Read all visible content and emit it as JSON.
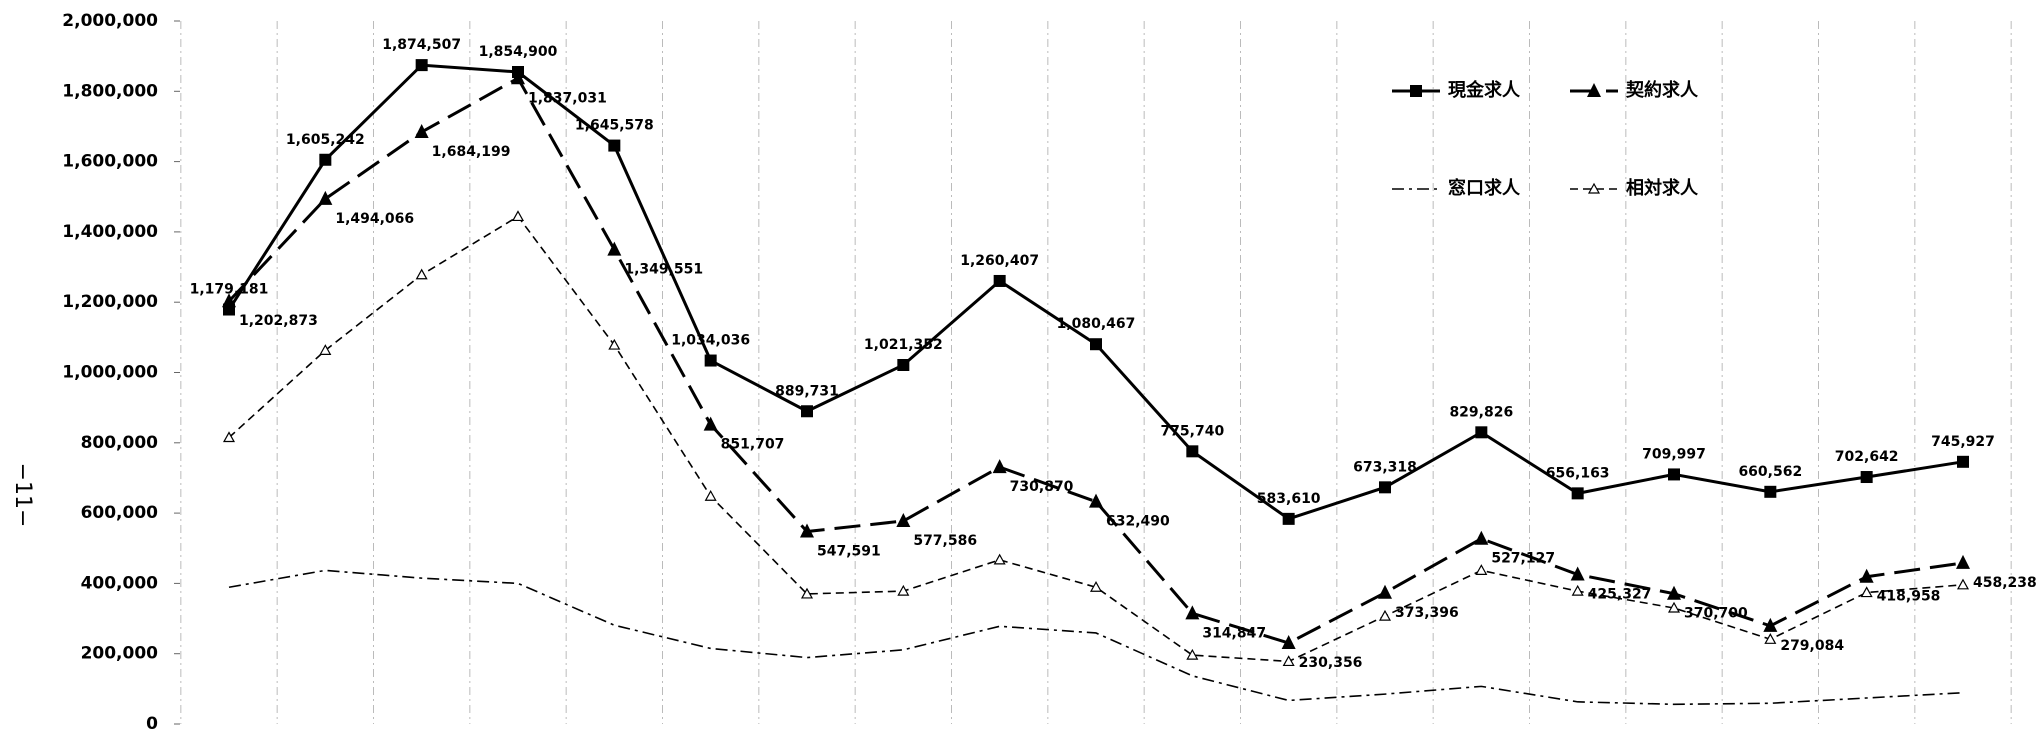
{
  "page_number": "−11−",
  "chart_data": {
    "type": "line",
    "categories": [
      null,
      null,
      null,
      null,
      null,
      null,
      null,
      null,
      null,
      null,
      null,
      null,
      null,
      null,
      null,
      null,
      null,
      null,
      null
    ],
    "ylim": [
      0,
      2000000
    ],
    "yticks": [
      0,
      {
        "value": 200000,
        "label": "200,000"
      },
      {
        "value": 400000,
        "label": "400,000"
      },
      {
        "value": 600000,
        "label": "600,000"
      },
      {
        "value": 800000,
        "label": "800,000"
      },
      {
        "value": 1000000,
        "label": "1,000,000"
      },
      {
        "value": 1200000,
        "label": "1,200,000"
      },
      {
        "value": 1400000,
        "label": "1,400,000"
      },
      {
        "value": 1600000,
        "label": "1,600,000"
      },
      {
        "value": 1800000,
        "label": "1,800,000"
      },
      {
        "value": 2000000,
        "label": "2,000,000"
      }
    ],
    "series": [
      {
        "name": "現金求人",
        "color": "#000000",
        "line_style": "solid",
        "marker": "square",
        "values": [
          1179181,
          1605242,
          1874507,
          1854900,
          1645578,
          1034036,
          889731,
          1021352,
          1260407,
          1080467,
          775740,
          583610,
          673318,
          829826,
          656163,
          709997,
          660562,
          702642,
          745927
        ],
        "value_labels": [
          "1,179,181",
          "1,605,242",
          "1,874,507",
          "1,854,900",
          "1,645,578",
          "1,034,036",
          "889,731",
          "1,021,352",
          "1,260,407",
          "1,080,467",
          "775,740",
          "583,610",
          "673,318",
          "829,826",
          "656,163",
          "709,997",
          "660,562",
          "702,642",
          "745,927"
        ]
      },
      {
        "name": "契約求人",
        "color": "#000000",
        "line_style": "long-dash",
        "marker": "triangle",
        "values": [
          1202873,
          1494066,
          1684199,
          1837031,
          1349551,
          851707,
          547591,
          577586,
          730870,
          632490,
          314847,
          230356,
          373396,
          527127,
          425327,
          370700,
          279084,
          418958,
          458238
        ],
        "value_labels": [
          "1,202,873",
          "1,494,066",
          "1,684,199",
          "1,837,031",
          "1,349,551",
          "851,707",
          "547,591",
          "577,586",
          "730,870",
          "632,490",
          "314,847",
          "230,356",
          "373,396",
          "527,127",
          "425,327",
          "370,700",
          "279,084",
          "418,958",
          "458,238"
        ]
      },
      {
        "name": "窓口求人",
        "color": "#000000",
        "line_style": "dash-dot",
        "marker": "none",
        "values": [
          389000,
          437000,
          415000,
          400000,
          281000,
          215000,
          189000,
          211000,
          278000,
          259000,
          137000,
          67000,
          85000,
          107000,
          63000,
          56000,
          59000,
          74000,
          89000
        ]
      },
      {
        "name": "相対求人",
        "color": "#000000",
        "line_style": "short-dash",
        "marker": "hollow-triangle",
        "values": [
          815000,
          1063000,
          1278000,
          1444000,
          1078000,
          648000,
          370000,
          378000,
          467000,
          389000,
          196000,
          178000,
          307000,
          437000,
          378000,
          330000,
          241000,
          374000,
          396000
        ]
      }
    ]
  }
}
